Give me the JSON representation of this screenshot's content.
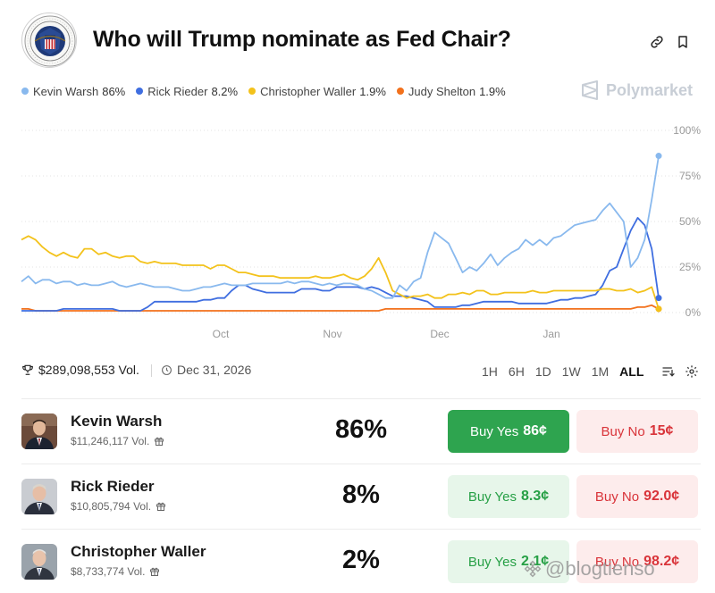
{
  "header": {
    "title": "Who will Trump nominate as Fed Chair?"
  },
  "legend": [
    {
      "name": "Kevin Warsh",
      "value": "86%",
      "color": "#89b9ee"
    },
    {
      "name": "Rick Rieder",
      "value": "8.2%",
      "color": "#3f6ee0"
    },
    {
      "name": "Christopher Waller",
      "value": "1.9%",
      "color": "#f3c21b"
    },
    {
      "name": "Judy Shelton",
      "value": "1.9%",
      "color": "#f2711c"
    }
  ],
  "brand": "Polymarket",
  "chart_data": {
    "type": "line",
    "title": "",
    "xlabel": "",
    "ylabel": "",
    "x_ticks": [
      "Oct",
      "Nov",
      "Dec",
      "Jan"
    ],
    "y_ticks": [
      "100%",
      "75%",
      "50%",
      "25%",
      "0%"
    ],
    "ylim": [
      0,
      100
    ],
    "grid": true,
    "series": [
      {
        "name": "Kevin Warsh",
        "color": "#89b9ee",
        "values": [
          17,
          20,
          16,
          18,
          18,
          16,
          17,
          17,
          15,
          16,
          15,
          15,
          16,
          17,
          15,
          14,
          15,
          16,
          15,
          14,
          14,
          14,
          13,
          12,
          12,
          13,
          14,
          14,
          15,
          16,
          15,
          15,
          15,
          16,
          16,
          16,
          16,
          16,
          17,
          16,
          17,
          17,
          16,
          15,
          16,
          15,
          16,
          16,
          15,
          13,
          12,
          10,
          8,
          8,
          15,
          12,
          17,
          19,
          33,
          44,
          41,
          38,
          30,
          22,
          25,
          23,
          27,
          32,
          26,
          30,
          33,
          35,
          40,
          37,
          40,
          37,
          41,
          42,
          45,
          48,
          49,
          50,
          51,
          56,
          60,
          55,
          50,
          25,
          30,
          40,
          62,
          86
        ]
      },
      {
        "name": "Rick Rieder",
        "color": "#3f6ee0",
        "values": [
          1,
          1,
          1,
          1,
          1,
          1,
          2,
          2,
          2,
          2,
          2,
          2,
          2,
          2,
          1,
          1,
          1,
          1,
          3,
          6,
          6,
          6,
          6,
          6,
          6,
          6,
          7,
          7,
          8,
          8,
          12,
          15,
          15,
          13,
          12,
          11,
          11,
          11,
          11,
          11,
          13,
          13,
          13,
          12,
          12,
          14,
          14,
          14,
          14,
          13,
          14,
          13,
          11,
          9,
          9,
          9,
          8,
          7,
          6,
          3,
          3,
          3,
          3,
          4,
          4,
          5,
          6,
          6,
          6,
          6,
          6,
          5,
          5,
          5,
          5,
          5,
          6,
          7,
          7,
          8,
          8,
          9,
          10,
          15,
          23,
          25,
          35,
          45,
          52,
          48,
          35,
          8
        ]
      },
      {
        "name": "Christopher Waller",
        "color": "#f3c21b",
        "values": [
          40,
          42,
          40,
          36,
          33,
          31,
          33,
          31,
          30,
          35,
          35,
          32,
          33,
          31,
          30,
          31,
          31,
          28,
          27,
          28,
          27,
          27,
          27,
          26,
          26,
          26,
          26,
          24,
          26,
          26,
          24,
          22,
          22,
          21,
          20,
          20,
          20,
          19,
          19,
          19,
          19,
          19,
          20,
          19,
          19,
          20,
          21,
          19,
          18,
          20,
          24,
          30,
          22,
          12,
          10,
          8,
          9,
          9,
          10,
          8,
          8,
          10,
          10,
          11,
          10,
          12,
          12,
          10,
          10,
          11,
          11,
          11,
          11,
          12,
          11,
          11,
          12,
          12,
          12,
          12,
          12,
          12,
          12,
          13,
          13,
          12,
          12,
          13,
          11,
          12,
          14,
          2
        ]
      },
      {
        "name": "Judy Shelton",
        "color": "#f2711c",
        "values": [
          2,
          2,
          1,
          1,
          1,
          1,
          1,
          1,
          1,
          1,
          1,
          1,
          1,
          1,
          1,
          1,
          1,
          1,
          1,
          1,
          1,
          1,
          1,
          1,
          1,
          1,
          1,
          1,
          1,
          1,
          1,
          1,
          1,
          1,
          1,
          1,
          1,
          1,
          1,
          1,
          1,
          1,
          1,
          1,
          1,
          1,
          1,
          1,
          1,
          1,
          1,
          1,
          2,
          2,
          2,
          2,
          2,
          2,
          2,
          2,
          2,
          2,
          2,
          2,
          2,
          2,
          2,
          2,
          2,
          2,
          2,
          2,
          2,
          2,
          2,
          2,
          2,
          2,
          2,
          2,
          2,
          2,
          2,
          2,
          2,
          2,
          2,
          2,
          3,
          3,
          4,
          2
        ]
      }
    ]
  },
  "meta": {
    "volume": "$289,098,553 Vol.",
    "end_date": "Dec 31, 2026",
    "ranges": [
      "1H",
      "6H",
      "1D",
      "1W",
      "1M",
      "ALL"
    ],
    "active_range": "ALL"
  },
  "candidates": [
    {
      "name": "Kevin Warsh",
      "volume": "$11,246,117 Vol.",
      "percent": "86%",
      "yes_label": "Buy Yes",
      "yes_price": "86¢",
      "no_label": "Buy No",
      "no_price": "15¢"
    },
    {
      "name": "Rick Rieder",
      "volume": "$10,805,794 Vol.",
      "percent": "8%",
      "yes_label": "Buy Yes",
      "yes_price": "8.3¢",
      "no_label": "Buy No",
      "no_price": "92.0¢"
    },
    {
      "name": "Christopher Waller",
      "volume": "$8,733,774 Vol.",
      "percent": "2%",
      "yes_label": "Buy Yes",
      "yes_price": "2.1¢",
      "no_label": "Buy No",
      "no_price": "98.2¢"
    }
  ],
  "watermark": "@blogtienso"
}
